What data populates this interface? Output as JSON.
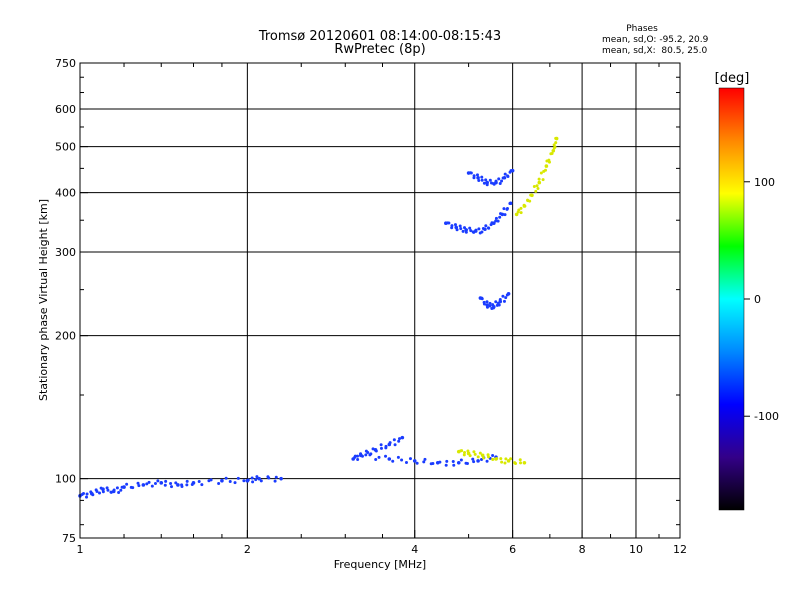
{
  "chart_data": {
    "type": "scatter",
    "title": "Tromsø 20120601 08:14:00-08:15:43",
    "subtitle": "RwPretec (8p)",
    "xlabel": "Frequency [MHz]",
    "ylabel": "Stationary phase Virtual Height [km]",
    "xscale": "log",
    "yscale": "log",
    "xlim": [
      1,
      12
    ],
    "ylim": [
      75,
      750
    ],
    "x_ticks": [
      1,
      2,
      4,
      6,
      8,
      10,
      12
    ],
    "y_ticks": [
      75,
      100,
      200,
      300,
      400,
      500,
      600,
      750
    ],
    "grid": true,
    "phases_box": {
      "heading": "Phases",
      "line1": "mean, sd,O: -95.2, 20.9",
      "line2": "mean, sd,X:  80.5, 25.0"
    },
    "colorbar": {
      "label": "[deg]",
      "range": [
        -180,
        180
      ],
      "ticks": [
        100,
        0,
        -100
      ],
      "colors": [
        "#ff0000",
        "#ff8800",
        "#ffff00",
        "#00ff00",
        "#00ffff",
        "#0088ff",
        "#0000ff",
        "#330088",
        "#000000"
      ]
    },
    "series": [
      {
        "mode": "O",
        "color": "#1a3cff",
        "traces": [
          [
            [
              1.0,
              92
            ],
            [
              1.05,
              93
            ],
            [
              1.1,
              95
            ],
            [
              1.15,
              94
            ],
            [
              1.2,
              96
            ],
            [
              1.3,
              97
            ],
            [
              1.4,
              98
            ],
            [
              1.5,
              97
            ],
            [
              1.6,
              98
            ],
            [
              1.8,
              99
            ],
            [
              2.0,
              99
            ],
            [
              2.1,
              100
            ],
            [
              2.3,
              100
            ]
          ],
          [
            [
              3.2,
              112
            ],
            [
              3.6,
              110
            ],
            [
              4.0,
              109
            ],
            [
              4.4,
              108
            ],
            [
              4.8,
              108
            ],
            [
              5.2,
              109
            ],
            [
              5.6,
              111
            ]
          ],
          [
            [
              4.55,
              345
            ],
            [
              4.75,
              338
            ],
            [
              4.95,
              334
            ],
            [
              5.15,
              332
            ],
            [
              5.35,
              335
            ],
            [
              5.55,
              345
            ],
            [
              5.75,
              360
            ],
            [
              5.95,
              380
            ]
          ],
          [
            [
              5.0,
              440
            ],
            [
              5.2,
              430
            ],
            [
              5.4,
              420
            ],
            [
              5.6,
              420
            ],
            [
              5.8,
              430
            ],
            [
              6.0,
              445
            ]
          ],
          [
            [
              5.25,
              240
            ],
            [
              5.4,
              232
            ],
            [
              5.55,
              230
            ],
            [
              5.7,
              236
            ],
            [
              5.9,
              245
            ]
          ],
          [
            [
              3.1,
              110
            ],
            [
              3.2,
              112
            ],
            [
              3.4,
              115
            ],
            [
              3.6,
              118
            ],
            [
              3.8,
              122
            ]
          ]
        ]
      },
      {
        "mode": "X",
        "color": "#d8e800",
        "traces": [
          [
            [
              4.8,
              114
            ],
            [
              5.0,
              113
            ],
            [
              5.3,
              112
            ],
            [
              5.6,
              110
            ],
            [
              5.9,
              109
            ],
            [
              6.3,
              108
            ]
          ],
          [
            [
              6.1,
              360
            ],
            [
              6.3,
              375
            ],
            [
              6.5,
              395
            ],
            [
              6.7,
              420
            ],
            [
              6.9,
              455
            ],
            [
              7.1,
              490
            ],
            [
              7.2,
              520
            ]
          ]
        ]
      }
    ]
  }
}
